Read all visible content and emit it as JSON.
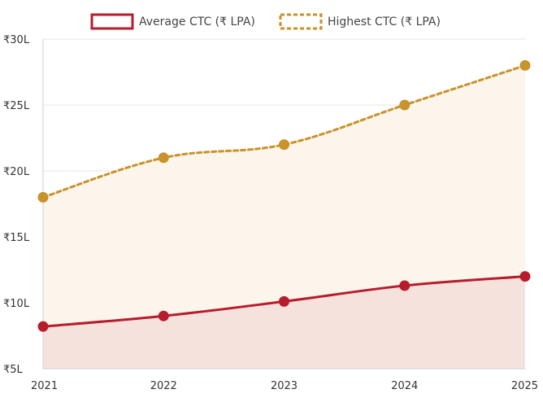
{
  "chart_data": {
    "type": "area",
    "x": [
      "2021",
      "2022",
      "2023",
      "2024",
      "2025"
    ],
    "series": [
      {
        "name": "Average CTC (₹ LPA)",
        "values": [
          8.2,
          9.0,
          10.1,
          11.3,
          12.0
        ],
        "color": "#B71C2C",
        "fill": "#F5E2DD",
        "line_style": "solid"
      },
      {
        "name": "Highest CTC (₹ LPA)",
        "values": [
          18.0,
          21.0,
          22.0,
          25.0,
          28.0
        ],
        "color": "#C9922A",
        "fill": "#FBF5EC",
        "line_style": "dotted"
      }
    ],
    "ylim": [
      5,
      30
    ],
    "yticks": [
      5,
      10,
      15,
      20,
      25,
      30
    ],
    "ytick_labels": [
      "₹5L",
      "₹10L",
      "₹15L",
      "₹20L",
      "₹25L",
      "₹30L"
    ],
    "grid": true,
    "legend": "top-center",
    "title": "",
    "xlabel": "",
    "ylabel": ""
  }
}
